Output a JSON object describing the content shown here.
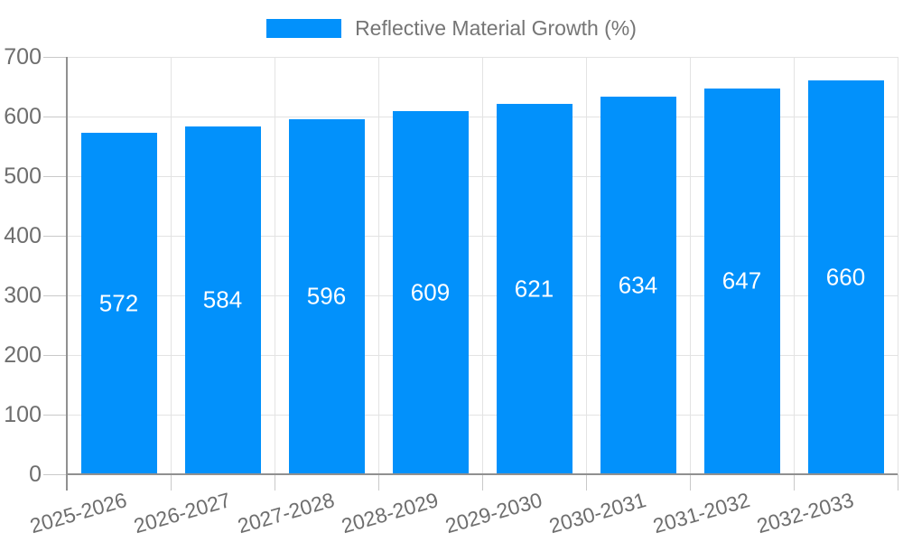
{
  "legend": {
    "label": "Reflective Material Growth (%)"
  },
  "chart_data": {
    "type": "bar",
    "title": "",
    "series_name": "Reflective Material Growth (%)",
    "categories": [
      "2025-2026",
      "2026-2027",
      "2027-2028",
      "2028-2029",
      "2029-2030",
      "2030-2031",
      "2031-2032",
      "2032-2033"
    ],
    "values": [
      572,
      584,
      596,
      609,
      621,
      634,
      647,
      660
    ],
    "value_labels_shown": true,
    "xlabel": "",
    "ylabel": "",
    "ylim": [
      0,
      700
    ],
    "ytick_step": 100,
    "yticks": [
      0,
      100,
      200,
      300,
      400,
      500,
      600,
      700
    ],
    "grid": true,
    "legend_position": "top-center",
    "x_label_rotation_deg": -16,
    "colors": {
      "bar": "#0291fb",
      "value_label": "#ffffff",
      "tick_label": "#6e6e6e",
      "legend_text": "#757575",
      "gridline": "#e3e3e3",
      "tick": "#c9c9c9",
      "axis": "#909090",
      "background": "#ffffff"
    }
  }
}
